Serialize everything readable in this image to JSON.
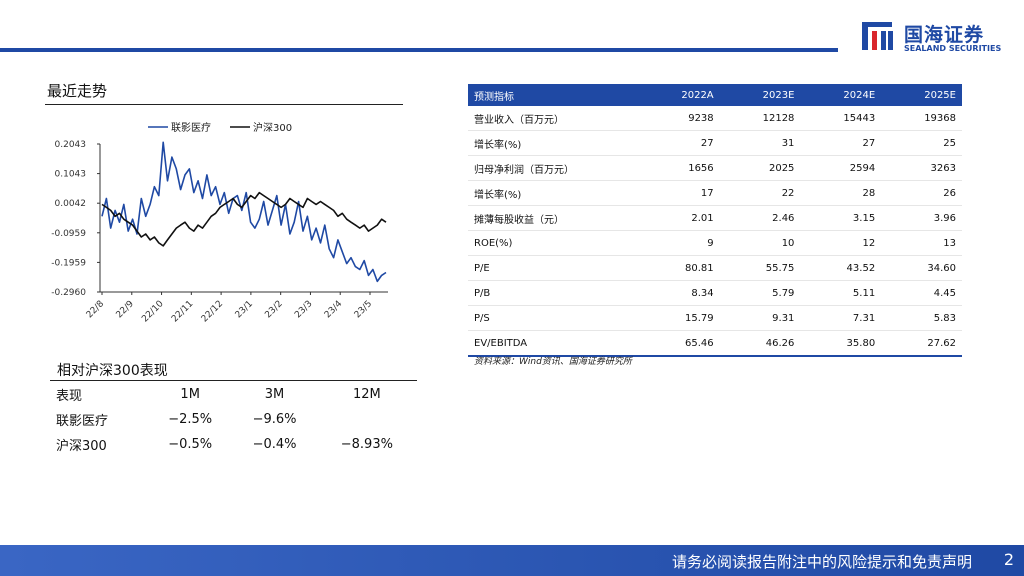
{
  "brand": {
    "name_cn": "国海证券",
    "name_en": "SEALAND SECURITIES",
    "color": "#1f49a4"
  },
  "trend": {
    "title": "最近走势"
  },
  "chart_data": {
    "type": "line",
    "legend": [
      "联影医疗",
      "沪深300"
    ],
    "legend_position": "top",
    "y_ticks": [
      "0.2043",
      "0.1043",
      "0.0042",
      "-0.0959",
      "-0.1959",
      "-0.2960"
    ],
    "ylim": [
      -0.296,
      0.2043
    ],
    "x_ticks": [
      "22/8",
      "22/9",
      "22/10",
      "22/11",
      "22/12",
      "23/1",
      "23/2",
      "23/3",
      "23/4",
      "23/5"
    ],
    "series": [
      {
        "name": "联影医疗",
        "color": "#1f49a4",
        "values": [
          -0.04,
          0.02,
          -0.08,
          -0.02,
          -0.06,
          0.0,
          -0.09,
          -0.05,
          -0.1,
          0.02,
          -0.04,
          0.0,
          0.06,
          0.03,
          0.21,
          0.08,
          0.16,
          0.12,
          0.05,
          0.1,
          0.12,
          0.04,
          0.08,
          0.02,
          0.1,
          0.03,
          0.06,
          0.0,
          0.04,
          -0.03,
          0.02,
          0.03,
          -0.02,
          0.04,
          -0.06,
          -0.08,
          -0.05,
          0.01,
          -0.07,
          -0.02,
          0.03,
          -0.07,
          0.0,
          -0.1,
          -0.06,
          0.01,
          -0.09,
          -0.04,
          -0.12,
          -0.08,
          -0.13,
          -0.07,
          -0.15,
          -0.18,
          -0.12,
          -0.16,
          -0.2,
          -0.18,
          -0.21,
          -0.22,
          -0.19,
          -0.24,
          -0.22,
          -0.26,
          -0.24,
          -0.23
        ]
      },
      {
        "name": "沪深300",
        "color": "#111111",
        "values": [
          0.0,
          -0.01,
          -0.02,
          -0.04,
          -0.03,
          -0.05,
          -0.06,
          -0.07,
          -0.09,
          -0.11,
          -0.1,
          -0.12,
          -0.11,
          -0.13,
          -0.14,
          -0.12,
          -0.1,
          -0.08,
          -0.07,
          -0.06,
          -0.08,
          -0.09,
          -0.07,
          -0.08,
          -0.06,
          -0.04,
          -0.03,
          -0.01,
          0.0,
          0.01,
          0.02,
          0.0,
          -0.01,
          0.01,
          0.03,
          0.02,
          0.04,
          0.03,
          0.02,
          0.01,
          0.0,
          -0.01,
          0.0,
          0.02,
          0.01,
          0.0,
          -0.01,
          0.02,
          0.01,
          0.0,
          0.01,
          0.0,
          -0.01,
          -0.02,
          -0.04,
          -0.03,
          -0.05,
          -0.06,
          -0.07,
          -0.08,
          -0.07,
          -0.09,
          -0.08,
          -0.07,
          -0.05,
          -0.06
        ]
      }
    ]
  },
  "relative": {
    "title": "相对沪深300表现",
    "headers": [
      "表现",
      "1M",
      "3M",
      "12M"
    ],
    "rows": [
      [
        "联影医疗",
        "−2.5%",
        "−9.6%",
        ""
      ],
      [
        "沪深300",
        "−0.5%",
        "−0.4%",
        "−8.93%"
      ]
    ]
  },
  "forecast": {
    "headers": [
      "预测指标",
      "2022A",
      "2023E",
      "2024E",
      "2025E"
    ],
    "rows": [
      [
        "营业收入（百万元）",
        "9238",
        "12128",
        "15443",
        "19368"
      ],
      [
        "增长率(%)",
        "27",
        "31",
        "27",
        "25"
      ],
      [
        "归母净利润（百万元）",
        "1656",
        "2025",
        "2594",
        "3263"
      ],
      [
        "增长率(%)",
        "17",
        "22",
        "28",
        "26"
      ],
      [
        "摊薄每股收益（元）",
        "2.01",
        "2.46",
        "3.15",
        "3.96"
      ],
      [
        "ROE(%)",
        "9",
        "10",
        "12",
        "13"
      ],
      [
        "P/E",
        "80.81",
        "55.75",
        "43.52",
        "34.60"
      ],
      [
        "P/B",
        "8.34",
        "5.79",
        "5.11",
        "4.45"
      ],
      [
        "P/S",
        "15.79",
        "9.31",
        "7.31",
        "5.83"
      ],
      [
        "EV/EBITDA",
        "65.46",
        "46.26",
        "35.80",
        "27.62"
      ]
    ],
    "source": "资料来源：Wind资讯、国海证券研究所"
  },
  "footer": {
    "disclaimer": "请务必阅读报告附注中的风险提示和免责声明",
    "page": "2"
  }
}
